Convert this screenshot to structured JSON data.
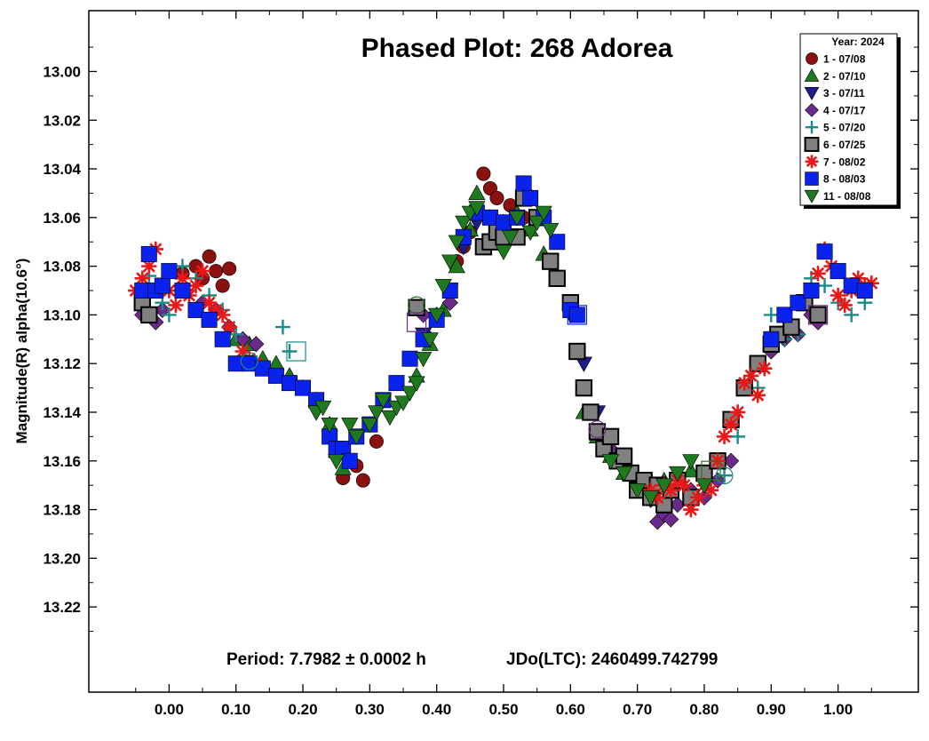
{
  "chart_data": {
    "type": "scatter",
    "title": "Phased Plot: 268 Adorea",
    "ylabel": "Magnitude(R) alpha(10.6°)",
    "xlabel": "",
    "xlim": [
      -0.12,
      1.12
    ],
    "ylim": [
      13.255,
      12.975
    ],
    "y_inverted": true,
    "grid": false,
    "legend_position": "top-right",
    "legend_title": "Year: 2024",
    "xticks": [
      "0.00",
      "0.10",
      "0.20",
      "0.30",
      "0.40",
      "0.50",
      "0.60",
      "0.70",
      "0.80",
      "0.90",
      "1.00"
    ],
    "yticks": [
      "13.00",
      "13.02",
      "13.04",
      "13.06",
      "13.08",
      "13.10",
      "13.12",
      "13.14",
      "13.16",
      "13.18",
      "13.20",
      "13.22"
    ],
    "annotations": {
      "period": "Period: 7.7982 ± 0.0002 h",
      "epoch": "JDo(LTC): 2460499.742799"
    },
    "series": [
      {
        "name": "1 - 07/08",
        "marker": "circle",
        "color": "#8b1010",
        "x": [
          0.02,
          0.04,
          0.05,
          0.06,
          0.07,
          0.08,
          0.09,
          0.26,
          0.28,
          0.29,
          0.31,
          0.43,
          0.44,
          0.45,
          0.46,
          0.47,
          0.48,
          0.49,
          0.51,
          0.53
        ],
        "y": [
          13.083,
          13.08,
          13.085,
          13.076,
          13.082,
          13.088,
          13.081,
          13.167,
          13.162,
          13.168,
          13.152,
          13.078,
          13.072,
          13.066,
          13.058,
          13.042,
          13.048,
          13.052,
          13.055,
          13.06
        ]
      },
      {
        "name": "2 - 07/10",
        "marker": "triangle-up",
        "color": "#1f7a1f",
        "x": [
          0.1,
          0.12,
          0.14,
          0.16,
          0.18,
          0.2,
          0.22,
          0.24,
          0.25,
          0.26,
          0.37,
          0.39,
          0.41,
          0.43,
          0.45,
          0.46,
          0.48,
          0.5,
          0.52,
          0.54,
          0.56,
          0.62,
          0.64,
          0.66,
          0.68,
          0.7,
          0.72,
          0.74,
          0.76,
          0.78
        ],
        "y": [
          13.11,
          13.112,
          13.118,
          13.12,
          13.125,
          13.13,
          13.135,
          13.145,
          13.156,
          13.163,
          13.125,
          13.112,
          13.098,
          13.08,
          13.065,
          13.05,
          13.06,
          13.062,
          13.058,
          13.065,
          13.075,
          13.14,
          13.15,
          13.158,
          13.165,
          13.172,
          13.17,
          13.168,
          13.166,
          13.164
        ]
      },
      {
        "name": "3 - 07/11",
        "marker": "triangle-down",
        "color": "#1c1c8a",
        "x": [
          0.38,
          0.4,
          0.42,
          0.44,
          0.46,
          0.6,
          0.62,
          0.64
        ],
        "y": [
          13.108,
          13.1,
          13.09,
          13.072,
          13.062,
          13.1,
          13.12,
          13.14
        ]
      },
      {
        "name": "4 - 07/17",
        "marker": "diamond",
        "color": "#6b2a8a",
        "x": [
          -0.04,
          -0.02,
          -0.01,
          0.05,
          0.07,
          0.09,
          0.11,
          0.13,
          0.38,
          0.4,
          0.42,
          0.66,
          0.68,
          0.7,
          0.72,
          0.73,
          0.74,
          0.75,
          0.76,
          0.78,
          0.8,
          0.82,
          0.84,
          0.88,
          0.9,
          0.92,
          0.94,
          0.96,
          0.97
        ],
        "y": [
          13.1,
          13.103,
          13.098,
          13.095,
          13.098,
          13.105,
          13.11,
          13.112,
          13.1,
          13.1,
          13.095,
          13.155,
          13.16,
          13.168,
          13.176,
          13.185,
          13.182,
          13.184,
          13.178,
          13.172,
          13.175,
          13.168,
          13.16,
          13.12,
          13.115,
          13.11,
          13.108,
          13.1,
          13.103
        ]
      },
      {
        "name": "5 - 07/20",
        "marker": "plus",
        "color": "#1a8a8a",
        "x": [
          -0.04,
          -0.03,
          -0.01,
          0.0,
          0.02,
          0.04,
          0.06,
          0.08,
          0.1,
          0.17,
          0.18,
          0.82,
          0.83,
          0.85,
          0.88,
          0.9,
          0.92,
          0.94,
          0.96,
          0.98,
          1.0,
          1.02,
          1.04
        ],
        "y": [
          13.09,
          13.084,
          13.095,
          13.1,
          13.08,
          13.085,
          13.092,
          13.098,
          13.108,
          13.105,
          13.115,
          13.16,
          13.166,
          13.15,
          13.13,
          13.1,
          13.11,
          13.108,
          13.085,
          13.088,
          13.095,
          13.1,
          13.095
        ]
      },
      {
        "name": "6 - 07/25",
        "marker": "square",
        "color": "#808080",
        "x": [
          -0.04,
          -0.03,
          0.37,
          0.47,
          0.48,
          0.49,
          0.5,
          0.52,
          0.53,
          0.55,
          0.57,
          0.58,
          0.6,
          0.61,
          0.62,
          0.63,
          0.64,
          0.65,
          0.66,
          0.67,
          0.68,
          0.69,
          0.7,
          0.71,
          0.72,
          0.73,
          0.74,
          0.75,
          0.76,
          0.78,
          0.8,
          0.82,
          0.84,
          0.86,
          0.88,
          0.9,
          0.91,
          0.93,
          0.95,
          0.97
        ],
        "y": [
          13.095,
          13.1,
          13.097,
          13.072,
          13.07,
          13.066,
          13.068,
          13.068,
          13.052,
          13.06,
          13.078,
          13.085,
          13.095,
          13.115,
          13.13,
          13.14,
          13.148,
          13.155,
          13.15,
          13.16,
          13.158,
          13.165,
          13.172,
          13.168,
          13.175,
          13.17,
          13.178,
          13.172,
          13.168,
          13.175,
          13.165,
          13.16,
          13.143,
          13.13,
          13.12,
          13.112,
          13.108,
          13.105,
          13.095,
          13.1
        ]
      },
      {
        "name": "7 - 08/02",
        "marker": "asterisk",
        "color": "#e81818",
        "x": [
          -0.05,
          -0.04,
          -0.03,
          -0.02,
          0.0,
          0.01,
          0.02,
          0.03,
          0.04,
          0.05,
          0.06,
          0.07,
          0.08,
          0.09,
          0.11,
          0.12,
          0.13,
          0.72,
          0.73,
          0.74,
          0.75,
          0.76,
          0.77,
          0.78,
          0.79,
          0.8,
          0.81,
          0.82,
          0.83,
          0.84,
          0.85,
          0.86,
          0.87,
          0.88,
          0.89,
          0.97,
          0.98,
          0.99,
          1.0,
          1.01,
          1.02,
          1.03,
          1.04,
          1.05
        ],
        "y": [
          13.09,
          13.085,
          13.08,
          13.073,
          13.09,
          13.096,
          13.085,
          13.092,
          13.088,
          13.082,
          13.095,
          13.098,
          13.1,
          13.105,
          13.115,
          13.118,
          13.12,
          13.172,
          13.175,
          13.17,
          13.172,
          13.168,
          13.17,
          13.18,
          13.175,
          13.17,
          13.172,
          13.16,
          13.15,
          13.145,
          13.14,
          13.128,
          13.125,
          13.133,
          13.122,
          13.083,
          13.073,
          13.08,
          13.092,
          13.096,
          13.09,
          13.085,
          13.088,
          13.087
        ]
      },
      {
        "name": "8 - 08/03",
        "marker": "square",
        "color": "#0a22ee",
        "x": [
          -0.04,
          -0.03,
          -0.02,
          -0.01,
          0.0,
          0.02,
          0.04,
          0.06,
          0.08,
          0.1,
          0.12,
          0.14,
          0.16,
          0.18,
          0.2,
          0.22,
          0.24,
          0.25,
          0.26,
          0.27,
          0.28,
          0.3,
          0.32,
          0.34,
          0.36,
          0.38,
          0.4,
          0.42,
          0.44,
          0.46,
          0.48,
          0.5,
          0.52,
          0.53,
          0.54,
          0.56,
          0.58,
          0.6,
          0.61,
          0.9,
          0.92,
          0.94,
          0.96,
          0.98,
          1.0,
          1.02,
          1.04
        ],
        "y": [
          13.09,
          13.075,
          13.09,
          13.088,
          13.082,
          13.09,
          13.098,
          13.102,
          13.11,
          13.12,
          13.12,
          13.122,
          13.125,
          13.128,
          13.13,
          13.135,
          13.15,
          13.155,
          13.155,
          13.16,
          13.15,
          13.145,
          13.135,
          13.128,
          13.118,
          13.11,
          13.102,
          13.09,
          13.068,
          13.058,
          13.06,
          13.062,
          13.06,
          13.046,
          13.052,
          13.06,
          13.07,
          13.098,
          13.1,
          13.11,
          13.1,
          13.095,
          13.09,
          13.074,
          13.082,
          13.088,
          13.09
        ]
      },
      {
        "name": "11 - 08/08",
        "marker": "triangle-down",
        "color": "#1f7a1f",
        "x": [
          0.22,
          0.23,
          0.24,
          0.25,
          0.27,
          0.28,
          0.3,
          0.31,
          0.32,
          0.33,
          0.34,
          0.35,
          0.36,
          0.37,
          0.38,
          0.39,
          0.4,
          0.41,
          0.42,
          0.43,
          0.44,
          0.45,
          0.46,
          0.5,
          0.51,
          0.52,
          0.54,
          0.55,
          0.56,
          0.57,
          0.66,
          0.68,
          0.7,
          0.72,
          0.74,
          0.76,
          0.78,
          0.8
        ],
        "y": [
          13.14,
          13.138,
          13.145,
          13.16,
          13.145,
          13.15,
          13.145,
          13.14,
          13.135,
          13.142,
          13.138,
          13.136,
          13.132,
          13.128,
          13.118,
          13.11,
          13.1,
          13.088,
          13.078,
          13.07,
          13.062,
          13.058,
          13.056,
          13.074,
          13.068,
          13.06,
          13.066,
          13.062,
          13.058,
          13.065,
          13.16,
          13.165,
          13.172,
          13.175,
          13.17,
          13.165,
          13.16,
          13.17
        ]
      }
    ],
    "hollow_markers": [
      {
        "marker": "circle",
        "color": "#1a8a8a",
        "x": 0.12,
        "y": 13.119
      },
      {
        "marker": "circle",
        "color": "#1a8a8a",
        "x": 0.83,
        "y": 13.166
      },
      {
        "marker": "circle",
        "color": "#1f7a1f",
        "x": 0.37,
        "y": 13.096
      },
      {
        "marker": "circle",
        "color": "#6b2a8a",
        "x": 0.64,
        "y": 13.147
      },
      {
        "marker": "square",
        "color": "#1a8a8a",
        "x": 0.19,
        "y": 13.115
      },
      {
        "marker": "square",
        "color": "#0a22ee",
        "x": 0.61,
        "y": 13.1
      },
      {
        "marker": "square",
        "color": "#6b2a8a",
        "x": 0.37,
        "y": 13.103
      },
      {
        "marker": "square",
        "color": "#1f7a1f",
        "x": 0.81,
        "y": 13.164
      },
      {
        "marker": "square",
        "color": "#6b2a8a",
        "x": 0.97,
        "y": 13.1
      }
    ]
  }
}
